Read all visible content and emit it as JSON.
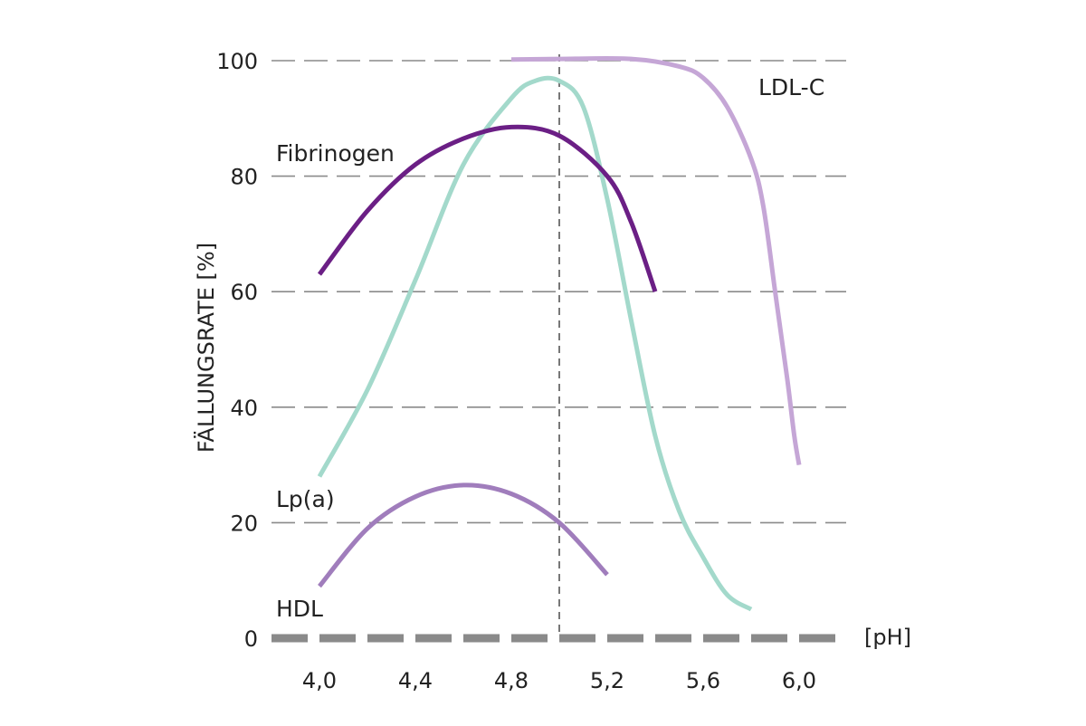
{
  "chart_data": {
    "type": "line",
    "title": "",
    "xlabel": "[pH]",
    "ylabel": "FÄLLUNGSRATE [%]",
    "xlim": [
      3.8,
      6.2
    ],
    "ylim": [
      0,
      100
    ],
    "x_ticks": [
      {
        "value": 4.0,
        "label": "4,0"
      },
      {
        "value": 4.4,
        "label": "4,4"
      },
      {
        "value": 4.8,
        "label": "4,8"
      },
      {
        "value": 5.2,
        "label": "5,2"
      },
      {
        "value": 5.6,
        "label": "5,6"
      },
      {
        "value": 6.0,
        "label": "6,0"
      }
    ],
    "y_ticks": [
      {
        "value": 0,
        "label": "0"
      },
      {
        "value": 20,
        "label": "20"
      },
      {
        "value": 40,
        "label": "40"
      },
      {
        "value": 60,
        "label": "60"
      },
      {
        "value": 80,
        "label": "80"
      },
      {
        "value": 100,
        "label": "100"
      }
    ],
    "grid": "horizontal dashed",
    "reference_line": {
      "x": 5.0,
      "style": "dashed vertical"
    },
    "series": [
      {
        "name": "LDL-C",
        "color": "#c5a6d6",
        "points": [
          [
            4.8,
            100.2
          ],
          [
            5.0,
            100.3
          ],
          [
            5.3,
            100.3
          ],
          [
            5.5,
            99.0
          ],
          [
            5.6,
            97.0
          ],
          [
            5.7,
            92.0
          ],
          [
            5.8,
            83.0
          ],
          [
            5.85,
            75.0
          ],
          [
            5.9,
            60.0
          ],
          [
            5.95,
            45.0
          ],
          [
            5.98,
            35.0
          ],
          [
            6.0,
            30.0
          ]
        ]
      },
      {
        "name": "Lp(a)",
        "color": "#a3d9cb",
        "points": [
          [
            4.0,
            28.0
          ],
          [
            4.2,
            43.0
          ],
          [
            4.4,
            62.0
          ],
          [
            4.6,
            82.0
          ],
          [
            4.8,
            93.5
          ],
          [
            4.9,
            96.5
          ],
          [
            5.0,
            96.5
          ],
          [
            5.1,
            92.0
          ],
          [
            5.2,
            76.0
          ],
          [
            5.3,
            55.0
          ],
          [
            5.4,
            35.0
          ],
          [
            5.5,
            22.0
          ],
          [
            5.6,
            14.0
          ],
          [
            5.7,
            7.5
          ],
          [
            5.8,
            5.0
          ]
        ]
      },
      {
        "name": "Fibrinogen",
        "color": "#6b1f85",
        "points": [
          [
            4.0,
            63.0
          ],
          [
            4.2,
            74.0
          ],
          [
            4.4,
            82.0
          ],
          [
            4.6,
            86.5
          ],
          [
            4.8,
            88.5
          ],
          [
            5.0,
            87.0
          ],
          [
            5.2,
            80.0
          ],
          [
            5.3,
            72.0
          ],
          [
            5.4,
            60.0
          ]
        ]
      },
      {
        "name": "HDL",
        "color": "#a07dbc",
        "points": [
          [
            4.0,
            9.0
          ],
          [
            4.2,
            19.0
          ],
          [
            4.4,
            24.5
          ],
          [
            4.6,
            26.5
          ],
          [
            4.8,
            25.0
          ],
          [
            5.0,
            20.0
          ],
          [
            5.2,
            11.0
          ]
        ]
      }
    ],
    "series_label_text": {
      "ldl": "LDL-C",
      "fibrinogen": "Fibrinogen",
      "lpa": "Lp(a)",
      "hdl": "HDL"
    }
  }
}
